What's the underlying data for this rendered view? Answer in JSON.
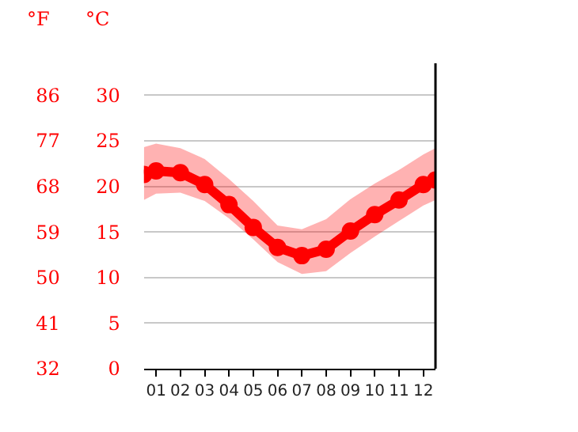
{
  "chart_data": {
    "type": "line",
    "ylabel": "°C",
    "y2label": "°F",
    "x": [
      0.5,
      1,
      2,
      3,
      4,
      5,
      6,
      7,
      8,
      9,
      10,
      11,
      12,
      12.5
    ],
    "series": [
      {
        "color": "#ff0000",
        "values": [
          21.3,
          21.7,
          21.5,
          20.2,
          18.0,
          15.5,
          13.3,
          12.4,
          13.1,
          15.1,
          16.9,
          18.5,
          20.2,
          20.7
        ],
        "lower": [
          18.5,
          19.2,
          19.3,
          18.4,
          16.5,
          14.2,
          11.7,
          10.4,
          10.7,
          12.7,
          14.5,
          16.2,
          17.9,
          18.5
        ],
        "upper": [
          24.3,
          24.7,
          24.2,
          23.0,
          20.8,
          18.4,
          15.7,
          15.3,
          16.4,
          18.6,
          20.3,
          21.8,
          23.5,
          24.2
        ]
      }
    ],
    "xlim": [
      0.5,
      12.5
    ],
    "xticks": [
      {
        "value": 1,
        "label": "01"
      },
      {
        "value": 2,
        "label": "02"
      },
      {
        "value": 3,
        "label": "03"
      },
      {
        "value": 4,
        "label": "04"
      },
      {
        "value": 5,
        "label": "05"
      },
      {
        "value": 6,
        "label": "06"
      },
      {
        "value": 7,
        "label": "07"
      },
      {
        "value": 8,
        "label": "08"
      },
      {
        "value": 9,
        "label": "09"
      },
      {
        "value": 10,
        "label": "10"
      },
      {
        "value": 11,
        "label": "11"
      },
      {
        "value": 12,
        "label": "12"
      }
    ],
    "ylim": [
      0,
      33.5
    ],
    "yticks": [
      0,
      5,
      10,
      15,
      20,
      25,
      30
    ],
    "y2lim": [
      32,
      92.3
    ],
    "y2ticks": [
      32,
      41,
      50,
      59,
      68,
      77,
      86
    ],
    "grid": "y",
    "marker": "circle",
    "line_style": "solid"
  }
}
